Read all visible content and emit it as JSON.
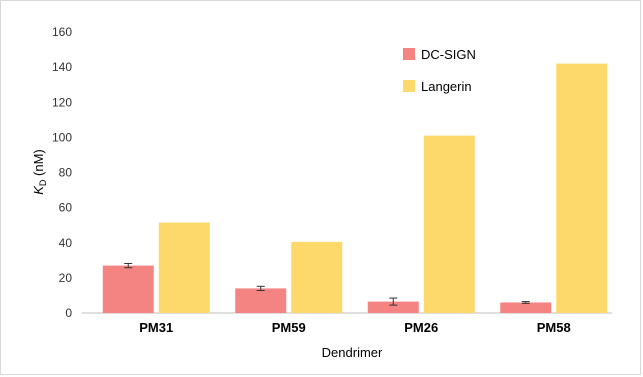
{
  "chart_data": {
    "type": "bar",
    "categories": [
      "PM31",
      "PM59",
      "PM26",
      "PM58"
    ],
    "series": [
      {
        "name": "DC-SIGN",
        "color": "#f48482",
        "values": [
          27,
          14,
          6.5,
          6
        ],
        "errors": [
          1.2,
          1.2,
          2.0,
          0.5
        ]
      },
      {
        "name": "Langerin",
        "color": "#fdd96c",
        "values": [
          51.5,
          40.5,
          101,
          142
        ],
        "errors": [
          0,
          0,
          0,
          0
        ]
      }
    ],
    "xlabel": "Dendrimer",
    "ylabel": {
      "italic": "K",
      "sub": "D",
      "rest": " (nM)"
    },
    "ylim": [
      0,
      160
    ],
    "yticks": [
      0,
      20,
      40,
      60,
      80,
      100,
      120,
      140,
      160
    ],
    "grid": false,
    "legend_position": "top-right"
  }
}
